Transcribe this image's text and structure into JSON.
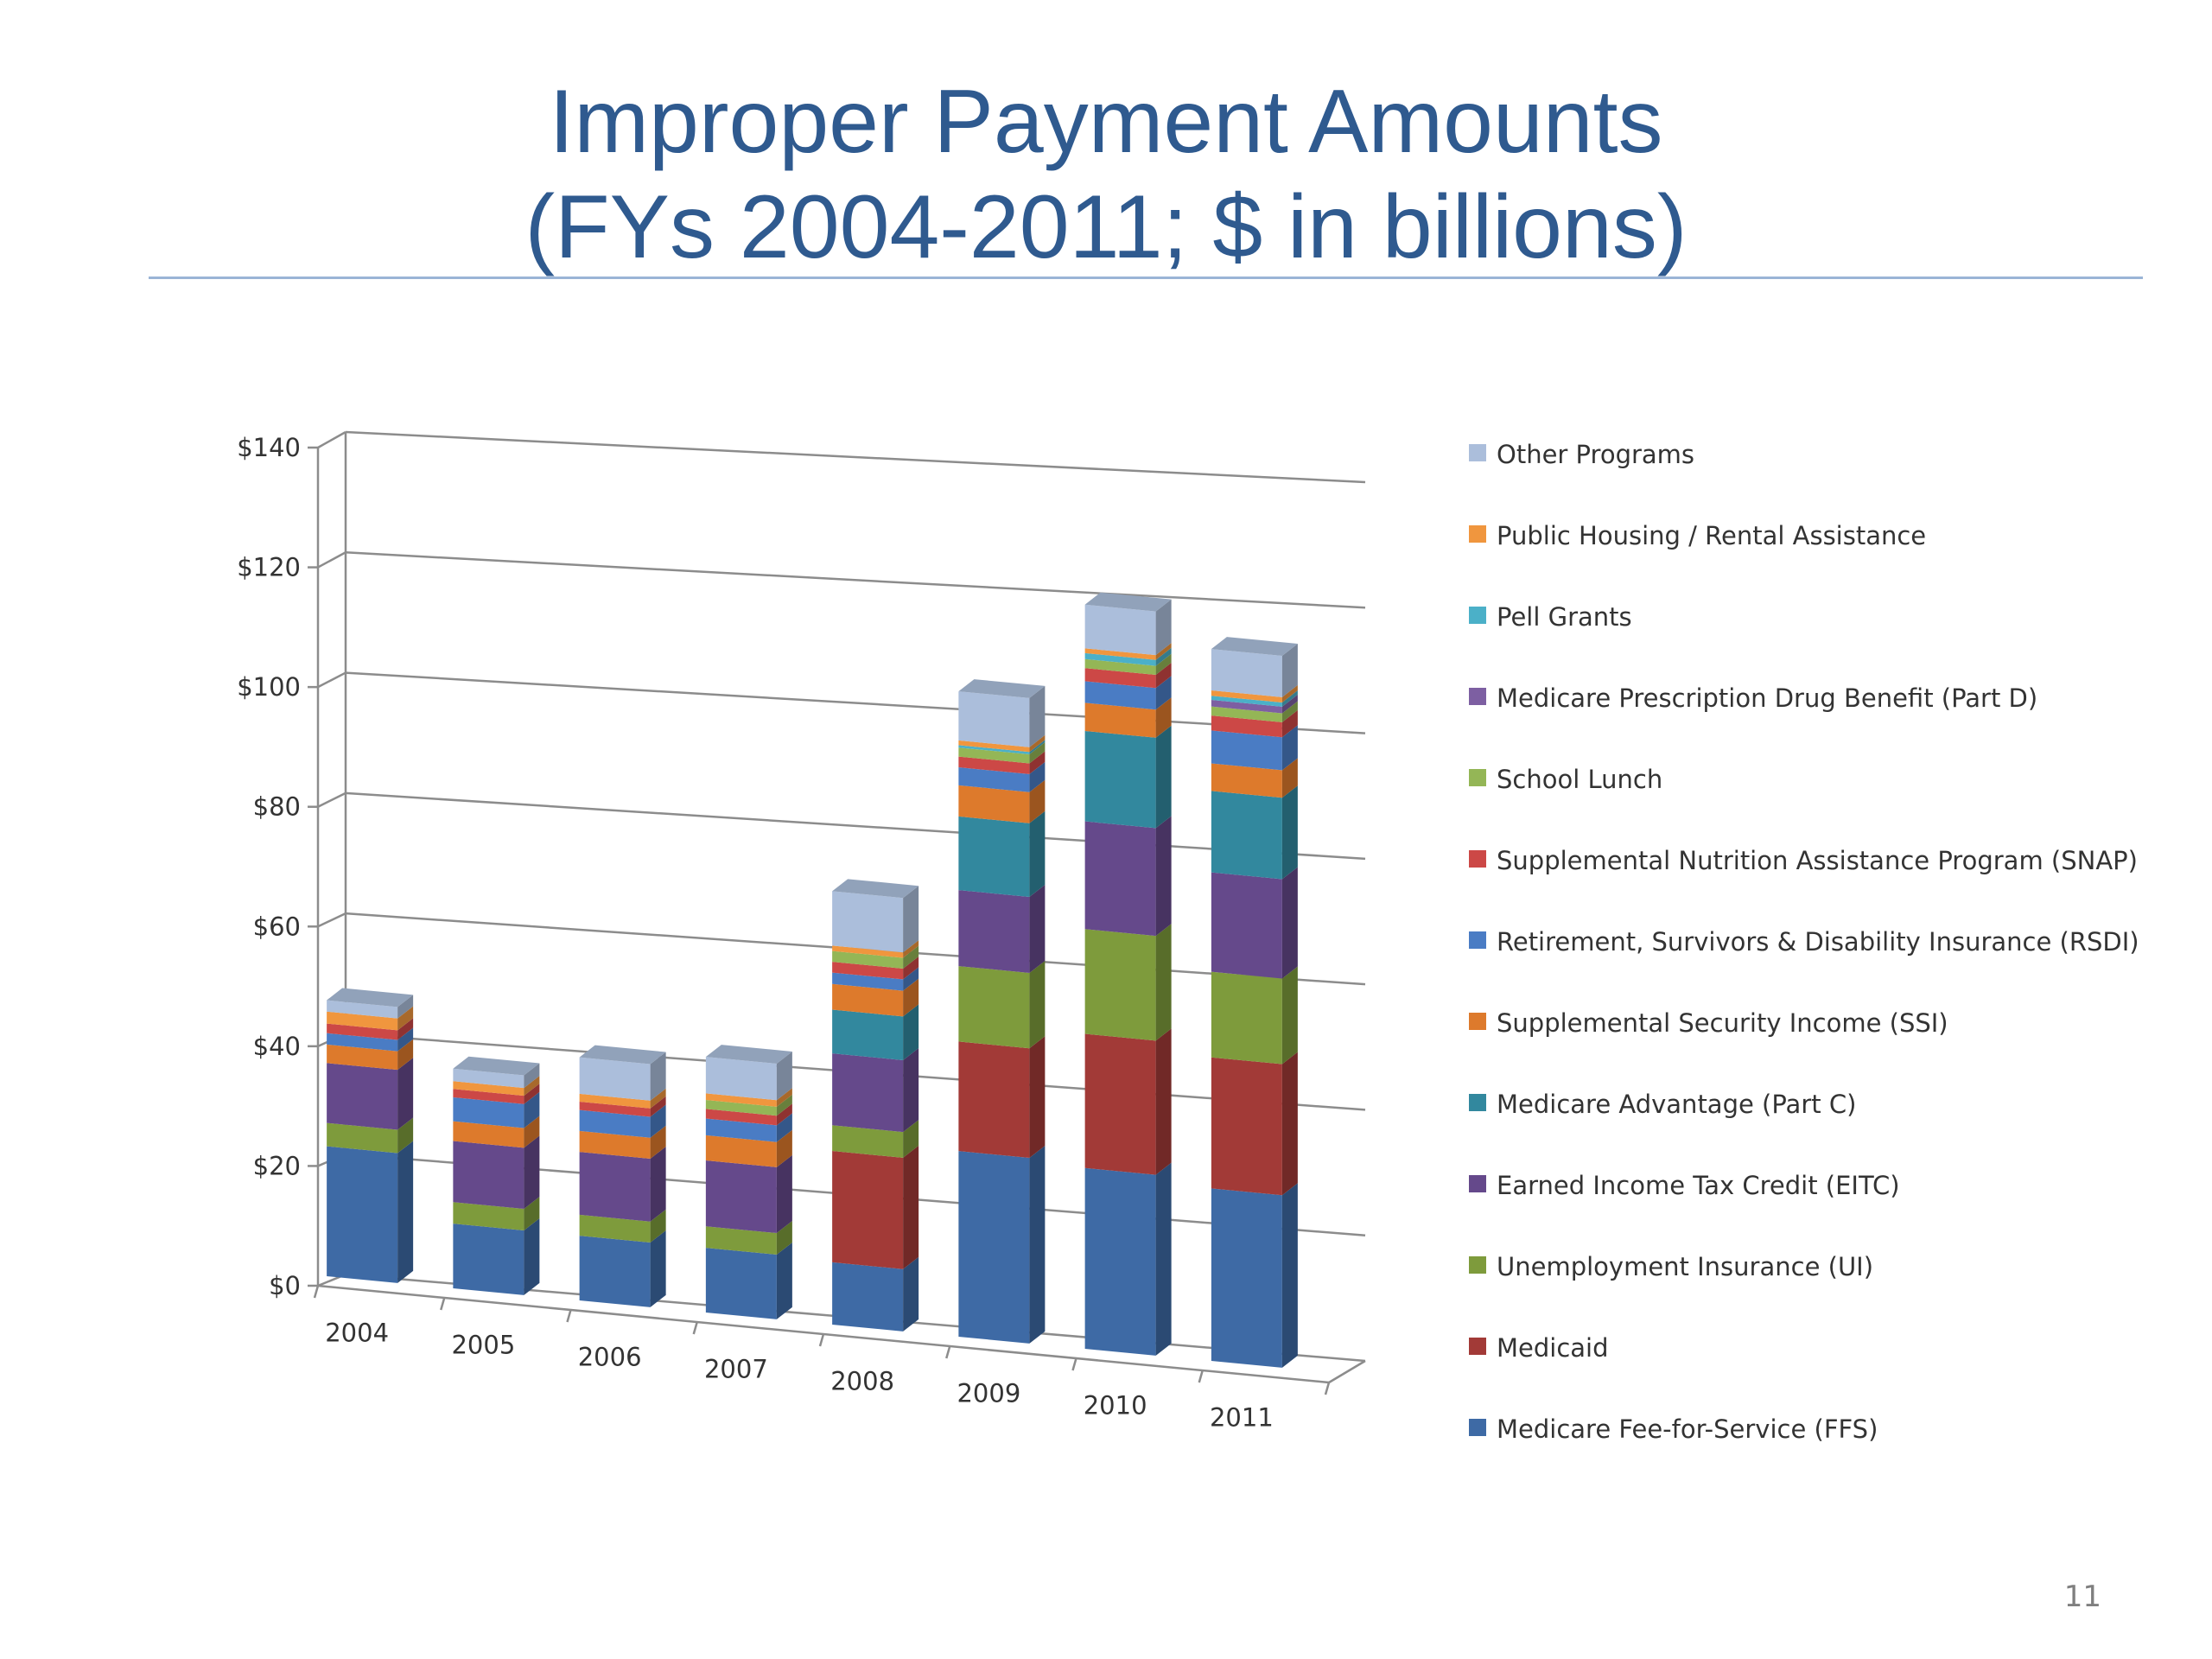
{
  "slide": {
    "title_line1": "Improper Payment Amounts",
    "title_line2": "(FYs 2004-2011; $ in billions)",
    "page_number": "11"
  },
  "chart_data": {
    "type": "bar",
    "stacked": true,
    "three_d": true,
    "title": "",
    "xlabel": "",
    "ylabel": "",
    "categories": [
      "2004",
      "2005",
      "2006",
      "2007",
      "2008",
      "2009",
      "2010",
      "2011"
    ],
    "y_tick_labels": [
      "$0",
      "$20",
      "$40",
      "$60",
      "$80",
      "$100",
      "$120",
      "$140"
    ],
    "ylim": [
      0,
      140
    ],
    "grid": true,
    "legend_position": "right",
    "series": [
      {
        "name": "Medicare Fee-for-Service (FFS)",
        "color": "#3e6aa5",
        "values": [
          21.7,
          10.8,
          10.8,
          10.8,
          10.4,
          31.0,
          30.2,
          28.8
        ]
      },
      {
        "name": "Medicaid",
        "color": "#a23a37",
        "values": [
          0,
          0,
          0,
          0,
          18.6,
          18.3,
          22.4,
          21.9
        ]
      },
      {
        "name": "Unemployment Insurance (UI)",
        "color": "#7e9b3c",
        "values": [
          3.9,
          3.6,
          3.5,
          3.6,
          4.3,
          12.6,
          17.5,
          14.3
        ]
      },
      {
        "name": "Earned Income Tax Credit (EITC)",
        "color": "#65498b",
        "values": [
          10.0,
          10.2,
          10.5,
          11.0,
          12.0,
          12.7,
          18.0,
          16.6
        ]
      },
      {
        "name": "Medicare Advantage (Part C)",
        "color": "#32889e",
        "values": [
          0,
          0,
          0,
          0,
          7.3,
          12.3,
          15.1,
          13.6
        ]
      },
      {
        "name": "Supplemental Security Income (SSI)",
        "color": "#dd7a2c",
        "values": [
          3.1,
          3.3,
          3.5,
          4.2,
          4.3,
          5.2,
          4.7,
          4.6
        ]
      },
      {
        "name": "Retirement, Survivors & Disability Insurance (RSDI)",
        "color": "#4a7cc4",
        "values": [
          1.9,
          4.0,
          3.5,
          2.8,
          1.9,
          3.0,
          3.6,
          5.5
        ]
      },
      {
        "name": "Supplemental Nutrition Assistance Program (SNAP)",
        "color": "#cc4846",
        "values": [
          1.6,
          1.4,
          1.4,
          1.6,
          1.8,
          1.8,
          2.2,
          2.5
        ]
      },
      {
        "name": "School Lunch",
        "color": "#94b656",
        "values": [
          0,
          0,
          0,
          1.5,
          1.8,
          1.5,
          1.5,
          1.5
        ]
      },
      {
        "name": "Medicare Prescription Drug Benefit (Part D)",
        "color": "#7d5fa2",
        "values": [
          0,
          0,
          0,
          0,
          0,
          0,
          0,
          1.1
        ]
      },
      {
        "name": "Pell Grants",
        "color": "#4bb0c8",
        "values": [
          0,
          0,
          0,
          0,
          0,
          0.4,
          1.0,
          0.7
        ]
      },
      {
        "name": "Public Housing / Rental Assistance",
        "color": "#f0963e",
        "values": [
          2.0,
          1.3,
          1.3,
          1.1,
          0.9,
          0.8,
          0.8,
          0.9
        ]
      },
      {
        "name": "Other Programs",
        "color": "#abbedb",
        "values": [
          1.9,
          2.1,
          6.1,
          6.1,
          9.1,
          8.2,
          7.3,
          6.9
        ]
      }
    ]
  }
}
